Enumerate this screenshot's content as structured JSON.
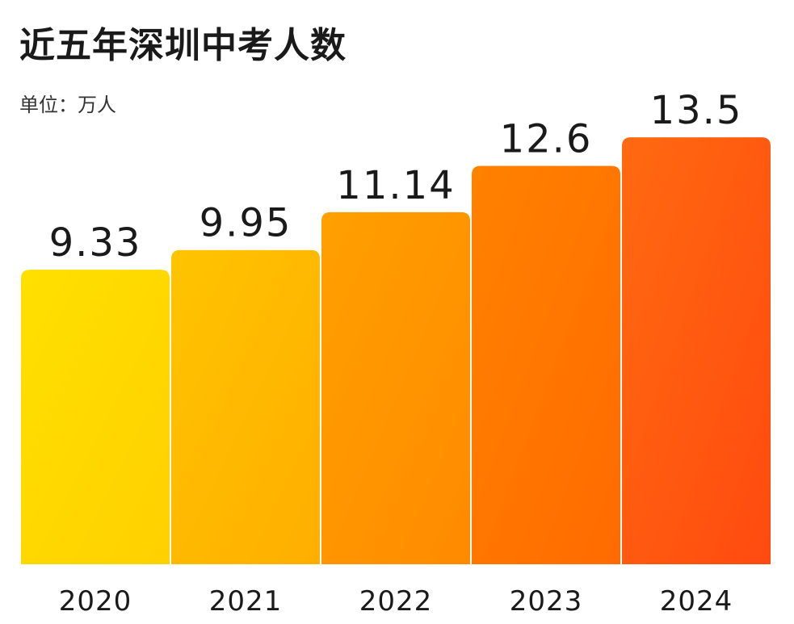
{
  "header": {
    "title": "近五年深圳中考人数",
    "unit_label": "单位：万人"
  },
  "chart_data": {
    "type": "bar",
    "title": "近五年深圳中考人数",
    "ylabel": "单位：万人",
    "xlabel": "",
    "categories": [
      "2020",
      "2021",
      "2022",
      "2023",
      "2024"
    ],
    "values": [
      9.33,
      9.95,
      11.14,
      12.6,
      13.5
    ],
    "value_labels": [
      "9.33",
      "9.95",
      "11.14",
      "12.6",
      "13.5"
    ],
    "ylim": [
      0,
      17.8
    ],
    "grid": false,
    "legend": "none",
    "colors": [
      [
        "#ffe000",
        "#ffd000"
      ],
      [
        "#ffc400",
        "#ffae00"
      ],
      [
        "#ffa000",
        "#ff8a00"
      ],
      [
        "#ff8200",
        "#ff6a00"
      ],
      [
        "#ff6a10",
        "#ff4a10"
      ]
    ]
  }
}
